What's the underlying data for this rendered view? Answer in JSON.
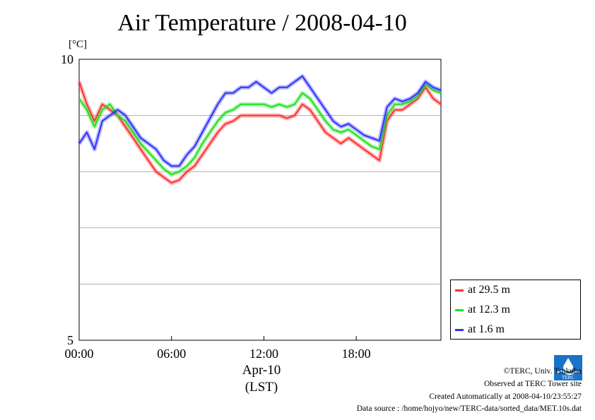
{
  "title": "Air Temperature / 2008-04-10",
  "unit_label": "[°C]",
  "x_axis": {
    "label_line1": "Apr-10",
    "label_line2": "(LST)"
  },
  "legend_items": [
    {
      "label": "at 29.5 m",
      "color": "#ff3030"
    },
    {
      "label": "at 12.3 m",
      "color": "#20e020"
    },
    {
      "label": "at 1.6 m",
      "color": "#3030ff"
    }
  ],
  "footer": {
    "copyright": "©TERC, Univ. Tsukuba",
    "observed": "Observed at TERC Tower site",
    "created": "Created Automatically at 2008-04-10/23:55:27",
    "source": "Data source : /home/hojyo/new/TERC-data/sorted_data/MET.10s.dat"
  },
  "logo_icon": "terc-logo-icon",
  "logo_text": "TERC",
  "chart_data": {
    "type": "line",
    "title": "Air Temperature / 2008-04-10",
    "xlabel": "Apr-10 (LST)",
    "ylabel": "[°C]",
    "xlim": [
      0,
      23.5
    ],
    "ylim": [
      5,
      10
    ],
    "x_ticks": [
      0,
      6,
      12,
      18
    ],
    "x_tick_labels": [
      "00:00",
      "06:00",
      "12:00",
      "18:00"
    ],
    "y_tick_labels": [
      "5",
      "10"
    ],
    "y_gridlines": [
      6,
      7,
      8,
      9
    ],
    "grid": true,
    "legend_position": "bottom-right, outside plot",
    "x": [
      0,
      0.5,
      1,
      1.5,
      2,
      2.5,
      3,
      3.5,
      4,
      4.5,
      5,
      5.5,
      6,
      6.5,
      7,
      7.5,
      8,
      8.5,
      9,
      9.5,
      10,
      10.5,
      11,
      11.5,
      12,
      12.5,
      13,
      13.5,
      14,
      14.5,
      15,
      15.5,
      16,
      16.5,
      17,
      17.5,
      18,
      18.5,
      19,
      19.5,
      20,
      20.5,
      21,
      21.5,
      22,
      22.5,
      23,
      23.5
    ],
    "series": [
      {
        "name": "at 29.5 m",
        "color": "#ff3030",
        "values": [
          9.6,
          9.2,
          8.9,
          9.2,
          9.1,
          9.0,
          8.8,
          8.6,
          8.4,
          8.2,
          8.0,
          7.9,
          7.8,
          7.85,
          8.0,
          8.1,
          8.3,
          8.5,
          8.7,
          8.85,
          8.9,
          9.0,
          9.0,
          9.0,
          9.0,
          9.0,
          9.0,
          8.95,
          9.0,
          9.2,
          9.1,
          8.9,
          8.7,
          8.6,
          8.5,
          8.6,
          8.5,
          8.4,
          8.3,
          8.2,
          8.9,
          9.1,
          9.1,
          9.2,
          9.3,
          9.5,
          9.3,
          9.2
        ]
      },
      {
        "name": "at 12.3 m",
        "color": "#20e020",
        "values": [
          9.3,
          9.1,
          8.8,
          9.1,
          9.2,
          9.0,
          8.9,
          8.7,
          8.5,
          8.35,
          8.2,
          8.05,
          7.95,
          8.0,
          8.1,
          8.25,
          8.5,
          8.7,
          8.9,
          9.05,
          9.1,
          9.2,
          9.2,
          9.2,
          9.2,
          9.15,
          9.2,
          9.15,
          9.2,
          9.4,
          9.3,
          9.1,
          8.9,
          8.75,
          8.7,
          8.75,
          8.65,
          8.55,
          8.45,
          8.4,
          9.0,
          9.2,
          9.2,
          9.25,
          9.35,
          9.55,
          9.45,
          9.4
        ]
      },
      {
        "name": "at 1.6 m",
        "color": "#3030ff",
        "values": [
          8.5,
          8.7,
          8.4,
          8.9,
          9.0,
          9.1,
          9.0,
          8.8,
          8.6,
          8.5,
          8.4,
          8.2,
          8.1,
          8.1,
          8.3,
          8.45,
          8.7,
          8.95,
          9.2,
          9.4,
          9.4,
          9.5,
          9.5,
          9.6,
          9.5,
          9.4,
          9.5,
          9.5,
          9.6,
          9.7,
          9.5,
          9.3,
          9.1,
          8.9,
          8.8,
          8.85,
          8.75,
          8.65,
          8.6,
          8.55,
          9.15,
          9.3,
          9.25,
          9.3,
          9.4,
          9.6,
          9.5,
          9.45
        ]
      }
    ]
  }
}
